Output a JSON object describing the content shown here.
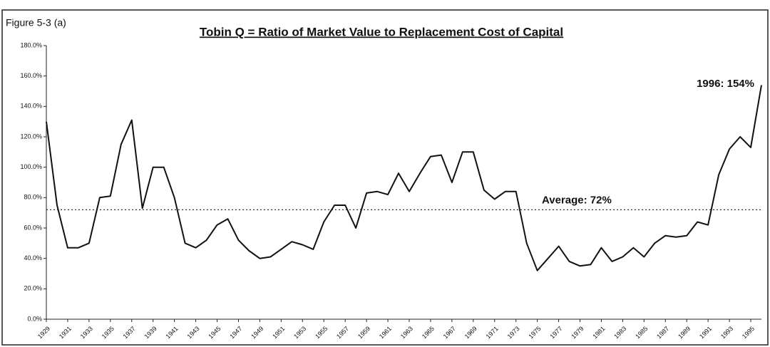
{
  "chart_data": {
    "type": "line",
    "figure_label": "Figure 5-3 (a)",
    "title": "Tobin Q = Ratio of Market Value to Replacement Cost of Capital",
    "x": [
      1929,
      1930,
      1931,
      1932,
      1933,
      1934,
      1935,
      1936,
      1937,
      1938,
      1939,
      1940,
      1941,
      1942,
      1943,
      1944,
      1945,
      1946,
      1947,
      1948,
      1949,
      1950,
      1951,
      1952,
      1953,
      1954,
      1955,
      1956,
      1957,
      1958,
      1959,
      1960,
      1961,
      1962,
      1963,
      1964,
      1965,
      1966,
      1967,
      1968,
      1969,
      1970,
      1971,
      1972,
      1973,
      1974,
      1975,
      1976,
      1977,
      1978,
      1979,
      1980,
      1981,
      1982,
      1983,
      1984,
      1985,
      1986,
      1987,
      1988,
      1989,
      1990,
      1991,
      1992,
      1993,
      1994,
      1995,
      1996
    ],
    "series": [
      {
        "name": "Tobin Q",
        "color": "#111111",
        "values": [
          130,
          75,
          47,
          47,
          50,
          80,
          81,
          115,
          131,
          73,
          100,
          100,
          80,
          50,
          47,
          52,
          62,
          66,
          52,
          45,
          40,
          41,
          46,
          51,
          49,
          46,
          64,
          75,
          75,
          60,
          83,
          84,
          82,
          96,
          84,
          96,
          107,
          108,
          90,
          110,
          110,
          85,
          79,
          84,
          84,
          50,
          32,
          40,
          48,
          38,
          35,
          36,
          47,
          38,
          41,
          47,
          41,
          50,
          55,
          54,
          55,
          64,
          62,
          95,
          112,
          120,
          113,
          154
        ]
      }
    ],
    "xlim": [
      1929,
      1996
    ],
    "xticks": [
      1929,
      1931,
      1933,
      1935,
      1937,
      1939,
      1941,
      1943,
      1945,
      1947,
      1949,
      1951,
      1953,
      1955,
      1957,
      1959,
      1961,
      1963,
      1965,
      1967,
      1969,
      1971,
      1973,
      1975,
      1977,
      1979,
      1981,
      1983,
      1985,
      1987,
      1989,
      1991,
      1993,
      1995
    ],
    "ylim": [
      0,
      180
    ],
    "yticks": [
      {
        "value": 0,
        "label": "0.0%"
      },
      {
        "value": 20,
        "label": "20.0%"
      },
      {
        "value": 40,
        "label": "40.0%"
      },
      {
        "value": 60,
        "label": "60.0%"
      },
      {
        "value": 80,
        "label": "80.0%"
      },
      {
        "value": 100,
        "label": "100.0%"
      },
      {
        "value": 120,
        "label": "120.0%"
      },
      {
        "value": 140,
        "label": "140.0%"
      },
      {
        "value": 160,
        "label": "160.0%"
      },
      {
        "value": 180,
        "label": "180.0%"
      }
    ],
    "average": {
      "value": 72,
      "label": "Average: 72%"
    },
    "end_annotation": "1996: 154%",
    "grid": false
  }
}
